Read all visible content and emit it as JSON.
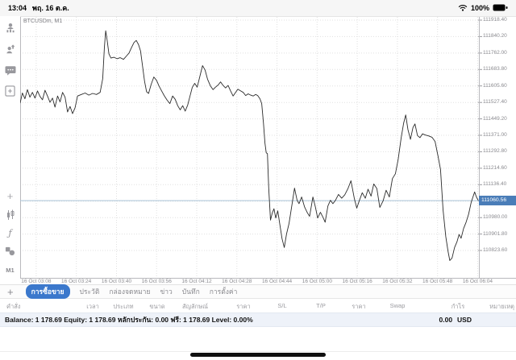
{
  "status_bar": {
    "time": "13:04",
    "date": "พฤ. 16 ต.ค.",
    "battery": "100%"
  },
  "sidebar": {
    "icons": [
      "account-icon",
      "trade-icon",
      "chat-icon",
      "new-order-icon",
      "crosshair-icon",
      "candles-icon",
      "indicators-icon",
      "objects-icon"
    ],
    "crosshair_glyph": "+",
    "function_glyph": "ƒ",
    "timeframe_label": "M1"
  },
  "chart_data": {
    "type": "line",
    "title": "BTCUSDm, M1",
    "symbol": "BTCUSDm",
    "timeframe": "M1",
    "xlabel": "",
    "ylabel": "",
    "grid": true,
    "legend": "none",
    "ylim": [
      110770,
      111930
    ],
    "current_price": 111060.56,
    "current_price_label": "111060.56",
    "accent_blue": "#4a7db8",
    "line_color": "#2b2b2b",
    "x_ticks": [
      "16 Oct 03:08",
      "16 Oct 03:24",
      "16 Oct 03:40",
      "16 Oct 03:56",
      "16 Oct 04:12",
      "16 Oct 04:28",
      "16 Oct 04:44",
      "16 Oct 05:00",
      "16 Oct 05:16",
      "16 Oct 05:32",
      "16 Oct 05:48",
      "16 Oct 06:04"
    ],
    "y_ticks": [
      "111918.40",
      "111840.20",
      "111762.00",
      "111683.80",
      "111605.60",
      "111527.40",
      "111449.20",
      "111371.00",
      "111292.80",
      "111214.60",
      "111136.40",
      "111058.20",
      "110980.00",
      "110901.80",
      "110823.60"
    ],
    "points_note": "pairs of [minutes after 03:08, price USD]",
    "points": [
      [
        -6.4,
        111525
      ],
      [
        -5.5,
        111572
      ],
      [
        -4.5,
        111545
      ],
      [
        -3.5,
        111588
      ],
      [
        -2.5,
        111552
      ],
      [
        -1.5,
        111575
      ],
      [
        -0.5,
        111548
      ],
      [
        0.5,
        111582
      ],
      [
        1.5,
        111556
      ],
      [
        2.5,
        111540
      ],
      [
        3.5,
        111585
      ],
      [
        4.5,
        111558
      ],
      [
        5.5,
        111528
      ],
      [
        6.5,
        111548
      ],
      [
        7.5,
        111505
      ],
      [
        8.5,
        111558
      ],
      [
        9.5,
        111530
      ],
      [
        10.5,
        111575
      ],
      [
        11.5,
        111552
      ],
      [
        12.5,
        111482
      ],
      [
        13.5,
        111508
      ],
      [
        14.5,
        111474
      ],
      [
        15.5,
        111502
      ],
      [
        16.5,
        111558
      ],
      [
        18,
        111565
      ],
      [
        19.5,
        111572
      ],
      [
        21,
        111562
      ],
      [
        22.5,
        111570
      ],
      [
        24,
        111565
      ],
      [
        25.5,
        111575
      ],
      [
        26.5,
        111640
      ],
      [
        27.2,
        111790
      ],
      [
        27.7,
        111868
      ],
      [
        28.3,
        111820
      ],
      [
        29,
        111758
      ],
      [
        29.8,
        111738
      ],
      [
        31,
        111742
      ],
      [
        32.2,
        111735
      ],
      [
        33.5,
        111740
      ],
      [
        34.8,
        111732
      ],
      [
        36,
        111748
      ],
      [
        37,
        111762
      ],
      [
        38,
        111788
      ],
      [
        39,
        111812
      ],
      [
        39.9,
        111822
      ],
      [
        40.8,
        111802
      ],
      [
        41.6,
        111772
      ],
      [
        42.4,
        111700
      ],
      [
        43.2,
        111628
      ],
      [
        44,
        111578
      ],
      [
        44.8,
        111570
      ],
      [
        45.8,
        111612
      ],
      [
        46.9,
        111648
      ],
      [
        48,
        111632
      ],
      [
        49,
        111605
      ],
      [
        50,
        111582
      ],
      [
        51,
        111560
      ],
      [
        52.2,
        111538
      ],
      [
        53.3,
        111522
      ],
      [
        54.4,
        111558
      ],
      [
        55.4,
        111542
      ],
      [
        56.4,
        111512
      ],
      [
        57.4,
        111492
      ],
      [
        58.4,
        111512
      ],
      [
        59.4,
        111486
      ],
      [
        60.4,
        111515
      ],
      [
        61.2,
        111552
      ],
      [
        62.2,
        111598
      ],
      [
        63.2,
        111618
      ],
      [
        64.2,
        111600
      ],
      [
        65.2,
        111648
      ],
      [
        66.3,
        111702
      ],
      [
        67.3,
        111682
      ],
      [
        68.3,
        111638
      ],
      [
        69.5,
        111605
      ],
      [
        70.5,
        111588
      ],
      [
        71.5,
        111600
      ],
      [
        72.5,
        111610
      ],
      [
        73.5,
        111625
      ],
      [
        74.5,
        111608
      ],
      [
        75.5,
        111596
      ],
      [
        76.5,
        111608
      ],
      [
        77.5,
        111582
      ],
      [
        78.5,
        111558
      ],
      [
        79.5,
        111575
      ],
      [
        80.4,
        111590
      ],
      [
        81.5,
        111582
      ],
      [
        82.5,
        111575
      ],
      [
        83.5,
        111560
      ],
      [
        84.5,
        111568
      ],
      [
        85.5,
        111562
      ],
      [
        86.5,
        111558
      ],
      [
        87.5,
        111565
      ],
      [
        88.3,
        111560
      ],
      [
        89.2,
        111545
      ],
      [
        89.9,
        111522
      ],
      [
        90.6,
        111428
      ],
      [
        91.2,
        111335
      ],
      [
        91.7,
        111288
      ],
      [
        92.2,
        111284
      ],
      [
        92.7,
        111120
      ],
      [
        93.4,
        110968
      ],
      [
        94.1,
        111002
      ],
      [
        94.8,
        111022
      ],
      [
        95.5,
        110978
      ],
      [
        96.3,
        111012
      ],
      [
        97.2,
        110942
      ],
      [
        98,
        110880
      ],
      [
        98.9,
        110838
      ],
      [
        99.8,
        110902
      ],
      [
        100.8,
        110952
      ],
      [
        101.8,
        111028
      ],
      [
        103,
        111120
      ],
      [
        104,
        111062
      ],
      [
        104.8,
        111046
      ],
      [
        105.8,
        111078
      ],
      [
        107,
        111030
      ],
      [
        108,
        111005
      ],
      [
        109,
        110986
      ],
      [
        110.3,
        111078
      ],
      [
        111.3,
        111030
      ],
      [
        112.2,
        110978
      ],
      [
        113.3,
        111005
      ],
      [
        114.3,
        110982
      ],
      [
        115.2,
        110958
      ],
      [
        116.3,
        111035
      ],
      [
        117.3,
        111062
      ],
      [
        118.3,
        111046
      ],
      [
        119.3,
        111062
      ],
      [
        120.5,
        111090
      ],
      [
        121.8,
        111072
      ],
      [
        123,
        111088
      ],
      [
        124.3,
        111118
      ],
      [
        125.5,
        111155
      ],
      [
        126.8,
        111072
      ],
      [
        127.8,
        111025
      ],
      [
        128.8,
        111060
      ],
      [
        130,
        111098
      ],
      [
        131.2,
        111072
      ],
      [
        132.3,
        111115
      ],
      [
        133.5,
        111082
      ],
      [
        134.6,
        111140
      ],
      [
        135.8,
        111118
      ],
      [
        137,
        111028
      ],
      [
        138.3,
        111060
      ],
      [
        139.5,
        111110
      ],
      [
        140.8,
        111078
      ],
      [
        142,
        111165
      ],
      [
        143.2,
        111188
      ],
      [
        144.3,
        111255
      ],
      [
        145.5,
        111360
      ],
      [
        146.5,
        111430
      ],
      [
        147.3,
        111468
      ],
      [
        148.2,
        111398
      ],
      [
        149.2,
        111352
      ],
      [
        150.2,
        111408
      ],
      [
        151,
        111425
      ],
      [
        152,
        111370
      ],
      [
        153,
        111360
      ],
      [
        154,
        111378
      ],
      [
        155.2,
        111372
      ],
      [
        156.5,
        111368
      ],
      [
        157.8,
        111362
      ],
      [
        159,
        111342
      ],
      [
        160.2,
        111272
      ],
      [
        161.2,
        111208
      ],
      [
        162.2,
        111018
      ],
      [
        163.3,
        110890
      ],
      [
        164.2,
        110820
      ],
      [
        164.9,
        110776
      ],
      [
        165.8,
        110788
      ],
      [
        166.8,
        110838
      ],
      [
        167.8,
        110866
      ],
      [
        168.6,
        110900
      ],
      [
        169.4,
        110882
      ],
      [
        170.4,
        110928
      ],
      [
        171.4,
        110958
      ],
      [
        172.4,
        110996
      ],
      [
        173.4,
        111052
      ],
      [
        174.2,
        111080
      ],
      [
        174.8,
        111102
      ],
      [
        175.5,
        111078
      ],
      [
        176.2,
        111062
      ]
    ]
  },
  "tabs": {
    "add_label": "+",
    "items": [
      {
        "name": "tab-trade",
        "label": "การซื้อขาย",
        "active": true
      },
      {
        "name": "tab-history",
        "label": "ประวัติ",
        "active": false
      },
      {
        "name": "tab-mailbox",
        "label": "กล่องจดหมาย",
        "active": false
      },
      {
        "name": "tab-news",
        "label": "ข่าว",
        "active": false
      },
      {
        "name": "tab-journal",
        "label": "บันทึก",
        "active": false
      },
      {
        "name": "tab-settings",
        "label": "การตั้งค่า",
        "active": false
      }
    ]
  },
  "table": {
    "headers": [
      "คำสั่ง",
      "เวลา",
      "ประเภท",
      "ขนาด",
      "สัญลักษณ์",
      "ราคา",
      "S/L",
      "T/P",
      "ราคา",
      "Swap",
      "กำไร",
      "หมายเหตุ"
    ]
  },
  "balance_row": {
    "text": "Balance: 1 178.69 Equity: 1 178.69 หลักประกัน: 0.00 ฟรี: 1 178.69 Level: 0.00%",
    "profit": "0.00",
    "currency": "USD"
  }
}
